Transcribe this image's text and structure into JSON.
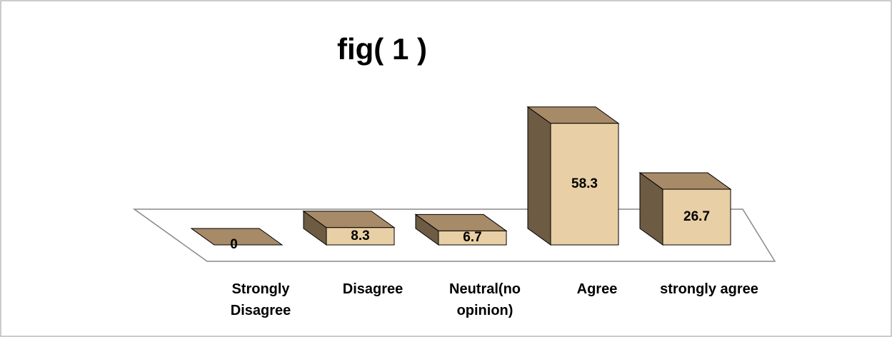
{
  "chart_data": {
    "type": "bar3d",
    "title": "fig( 1 )",
    "categories": [
      "Strongly Disagree",
      "Disagree",
      "Neutral(no opinion)",
      "Agree",
      "strongly agree"
    ],
    "values": [
      0,
      8.3,
      6.7,
      58.3,
      26.7
    ],
    "color": "#e9cfa5"
  }
}
